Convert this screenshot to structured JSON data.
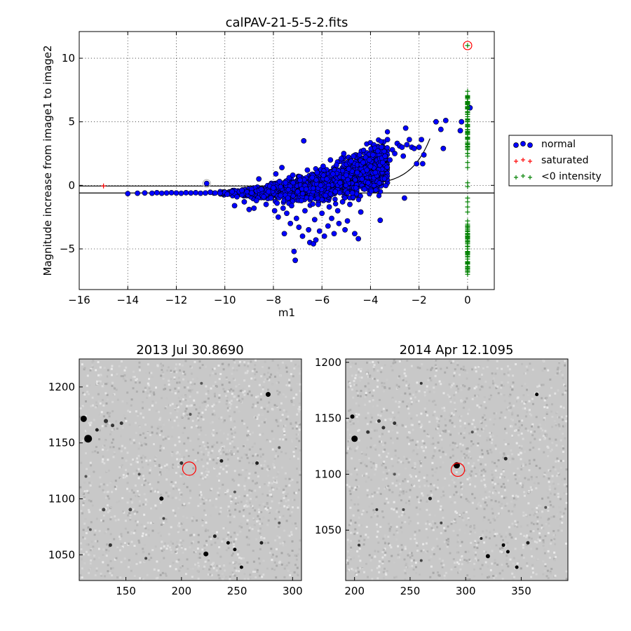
{
  "chart_data": [
    {
      "type": "scatter",
      "title": "calPAV-21-5-5-2.fits",
      "xlabel": "m1",
      "ylabel": "Magnitude increase from image1 to image2",
      "xlim": [
        -16,
        1.1
      ],
      "ylim": [
        -8.2,
        12.1
      ],
      "xticks": [
        -16,
        -14,
        -12,
        -10,
        -8,
        -6,
        -4,
        -2,
        0
      ],
      "yticks": [
        -5,
        0,
        5,
        10
      ],
      "xtick_labels": [
        "−16",
        "−14",
        "−12",
        "−10",
        "−8",
        "−6",
        "−4",
        "−2",
        "0"
      ],
      "ytick_labels": [
        "−5",
        "0",
        "5",
        "10"
      ],
      "grid": true,
      "legend_position": "right-outside",
      "colors": {
        "normal": "#0000ff",
        "saturated": "#ff0000",
        "negative": "#008000",
        "highlight": "#ff0000"
      },
      "series": [
        {
          "name": "normal",
          "marker": "circle",
          "points": [
            [
              -14.0,
              -0.65
            ],
            [
              -13.6,
              -0.62
            ],
            [
              -13.3,
              -0.6
            ],
            [
              -13.0,
              -0.62
            ],
            [
              -12.8,
              -0.58
            ],
            [
              -12.6,
              -0.62
            ],
            [
              -12.4,
              -0.6
            ],
            [
              -12.2,
              -0.58
            ],
            [
              -12.0,
              -0.6
            ],
            [
              -11.8,
              -0.62
            ],
            [
              -11.6,
              -0.58
            ],
            [
              -11.4,
              -0.6
            ],
            [
              -11.2,
              -0.58
            ],
            [
              -11.0,
              -0.62
            ],
            [
              -10.8,
              -0.6
            ],
            [
              -10.75,
              0.15
            ],
            [
              -10.6,
              -0.55
            ],
            [
              -10.4,
              -0.6
            ],
            [
              -10.2,
              -0.62
            ],
            [
              -10.0,
              -0.55
            ],
            [
              -9.9,
              -0.7
            ],
            [
              -9.7,
              -0.5
            ],
            [
              -9.6,
              -1.6
            ],
            [
              -9.5,
              -0.9
            ],
            [
              -9.3,
              -0.4
            ],
            [
              -9.2,
              -1.3
            ],
            [
              -9.0,
              -1.9
            ],
            [
              -8.9,
              -0.6
            ],
            [
              -8.8,
              -1.8
            ],
            [
              -8.7,
              -1.2
            ],
            [
              -8.6,
              0.5
            ],
            [
              -8.5,
              -0.3
            ],
            [
              -8.4,
              -0.9
            ],
            [
              -8.3,
              -1.5
            ],
            [
              -8.2,
              -0.5
            ],
            [
              -8.1,
              -1.0
            ],
            [
              -8.0,
              -0.2
            ],
            [
              -7.95,
              -2.0
            ],
            [
              -7.9,
              0.9
            ],
            [
              -7.85,
              -1.4
            ],
            [
              -7.8,
              -2.5
            ],
            [
              -7.75,
              0.3
            ],
            [
              -7.7,
              -0.8
            ],
            [
              -7.65,
              1.4
            ],
            [
              -7.6,
              -1.8
            ],
            [
              -7.55,
              -3.8
            ],
            [
              -7.5,
              0.2
            ],
            [
              -7.45,
              -2.2
            ],
            [
              -7.4,
              -1.0
            ],
            [
              -7.35,
              0.6
            ],
            [
              -7.3,
              -3.0
            ],
            [
              -7.25,
              -1.6
            ],
            [
              -7.2,
              0.8
            ],
            [
              -7.15,
              -5.2
            ],
            [
              -7.1,
              -5.9
            ],
            [
              -7.05,
              -2.6
            ],
            [
              -7.0,
              -0.5
            ],
            [
              -6.95,
              -3.3
            ],
            [
              -6.9,
              0.4
            ],
            [
              -6.85,
              -1.2
            ],
            [
              -6.8,
              -4.0
            ],
            [
              -6.75,
              3.5
            ],
            [
              -6.7,
              -2.0
            ],
            [
              -6.65,
              -0.3
            ],
            [
              -6.6,
              1.2
            ],
            [
              -6.55,
              -3.5
            ],
            [
              -6.5,
              -4.5
            ],
            [
              -6.45,
              -1.0
            ],
            [
              -6.4,
              0.6
            ],
            [
              -6.35,
              -4.6
            ],
            [
              -6.3,
              -2.7
            ],
            [
              -6.25,
              -4.3
            ],
            [
              -6.2,
              1.0
            ],
            [
              -6.15,
              -1.5
            ],
            [
              -6.1,
              -3.6
            ],
            [
              -6.05,
              0.0
            ],
            [
              -6.0,
              -2.2
            ],
            [
              -5.95,
              1.5
            ],
            [
              -5.9,
              -4.0
            ],
            [
              -5.85,
              -0.8
            ],
            [
              -5.8,
              0.5
            ],
            [
              -5.75,
              -3.2
            ],
            [
              -5.7,
              -1.7
            ],
            [
              -5.65,
              2.0
            ],
            [
              -5.6,
              -2.6
            ],
            [
              -5.55,
              0.9
            ],
            [
              -5.5,
              -3.8
            ],
            [
              -5.45,
              -0.5
            ],
            [
              -5.4,
              1.6
            ],
            [
              -5.35,
              -2.0
            ],
            [
              -5.3,
              -3.0
            ],
            [
              -5.25,
              0.2
            ],
            [
              -5.2,
              2.1
            ],
            [
              -5.15,
              -1.3
            ],
            [
              -5.1,
              2.5
            ],
            [
              -5.05,
              -3.5
            ],
            [
              -5.0,
              0.8
            ],
            [
              -4.95,
              -2.8
            ],
            [
              -4.9,
              1.3
            ],
            [
              -4.85,
              -1.5
            ],
            [
              -4.8,
              1.9
            ],
            [
              -4.75,
              -0.6
            ],
            [
              -4.7,
              2.3
            ],
            [
              -4.65,
              -3.8
            ],
            [
              -4.6,
              -0.2
            ],
            [
              -4.55,
              1.0
            ],
            [
              -4.5,
              -4.2
            ],
            [
              -4.45,
              2.4
            ],
            [
              -4.4,
              -2.1
            ],
            [
              -4.35,
              0.5
            ],
            [
              -4.3,
              1.8
            ],
            [
              -4.25,
              -0.3
            ],
            [
              -4.2,
              2.2
            ],
            [
              -4.15,
              1.2
            ],
            [
              -4.1,
              0.2
            ],
            [
              -4.05,
              2.0
            ],
            [
              -4.0,
              1.5
            ],
            [
              -3.9,
              2.4
            ],
            [
              -3.8,
              1.0
            ],
            [
              -3.7,
              2.7
            ],
            [
              -3.6,
              -2.75
            ],
            [
              -3.55,
              3.0
            ],
            [
              -3.5,
              1.8
            ],
            [
              -3.4,
              2.3
            ],
            [
              -3.3,
              3.6
            ],
            [
              -3.2,
              2.0
            ],
            [
              -3.1,
              2.8
            ],
            [
              -3.0,
              2.5
            ],
            [
              -2.9,
              3.3
            ],
            [
              -2.8,
              3.1
            ],
            [
              -2.7,
              3.0
            ],
            [
              -2.65,
              2.3
            ],
            [
              -2.6,
              -1.0
            ],
            [
              -2.55,
              4.5
            ],
            [
              -2.5,
              3.2
            ],
            [
              -2.4,
              3.6
            ],
            [
              -2.3,
              3.0
            ],
            [
              -2.2,
              2.9
            ],
            [
              -2.1,
              1.7
            ],
            [
              -2.0,
              3.0
            ],
            [
              -1.9,
              3.6
            ],
            [
              -1.85,
              1.7
            ],
            [
              -1.8,
              2.4
            ],
            [
              -1.3,
              5.0
            ],
            [
              -1.1,
              4.4
            ],
            [
              -0.9,
              5.1
            ],
            [
              -1.0,
              2.9
            ],
            [
              -0.3,
              4.3
            ],
            [
              -0.25,
              5.0
            ],
            [
              0.1,
              6.1
            ]
          ]
        },
        {
          "name": "saturated",
          "marker": "plus",
          "points": [
            [
              -15.0,
              -0.05
            ]
          ]
        },
        {
          "name": "<0 intensity",
          "marker": "plus",
          "points": [
            [
              0,
              11.0
            ],
            [
              0,
              7.4
            ],
            [
              0,
              7.0
            ],
            [
              0,
              6.8
            ],
            [
              0,
              6.6
            ],
            [
              0,
              6.4
            ],
            [
              0,
              6.2
            ],
            [
              0,
              6.0
            ],
            [
              0,
              5.8
            ],
            [
              0,
              5.6
            ],
            [
              0,
              5.4
            ],
            [
              0,
              5.2
            ],
            [
              0,
              5.0
            ],
            [
              0,
              4.8
            ],
            [
              0,
              4.6
            ],
            [
              0,
              4.4
            ],
            [
              0,
              4.2
            ],
            [
              0,
              4.0
            ],
            [
              0,
              3.8
            ],
            [
              0,
              3.6
            ],
            [
              0,
              3.4
            ],
            [
              0,
              3.2
            ],
            [
              0,
              3.0
            ],
            [
              0,
              2.8
            ],
            [
              0,
              2.5
            ],
            [
              0,
              2.3
            ],
            [
              0,
              1.8
            ],
            [
              0,
              1.4
            ],
            [
              0,
              0.2
            ],
            [
              0,
              -0.1
            ],
            [
              0,
              -1.0
            ],
            [
              0,
              -1.3
            ],
            [
              0,
              -1.7
            ],
            [
              0,
              -2.1
            ],
            [
              0,
              -2.8
            ],
            [
              0,
              -3.2
            ],
            [
              0,
              -3.4
            ],
            [
              0,
              -3.6
            ],
            [
              0,
              -3.8
            ],
            [
              0,
              -4.0
            ],
            [
              0,
              -4.2
            ],
            [
              0,
              -4.4
            ],
            [
              0,
              -4.6
            ],
            [
              0,
              -4.8
            ],
            [
              0,
              -5.0
            ],
            [
              0,
              -5.2
            ],
            [
              0,
              -5.4
            ],
            [
              0,
              -5.6
            ],
            [
              0,
              -5.8
            ],
            [
              0,
              -6.0
            ],
            [
              0,
              -6.2
            ],
            [
              0,
              -6.4
            ],
            [
              0,
              -6.6
            ],
            [
              0,
              -6.8
            ],
            [
              0,
              -7.0
            ]
          ]
        }
      ],
      "highlight_point": [
        0,
        11.0
      ],
      "hline_y": -0.6
    },
    {
      "type": "image",
      "title": "2013 Jul 30.8690",
      "xlim": [
        108,
        308
      ],
      "ylim": [
        1027,
        1225
      ],
      "xticks": [
        150,
        200,
        250,
        300
      ],
      "yticks": [
        1050,
        1100,
        1150,
        1200
      ],
      "circle_center": [
        207,
        1127
      ]
    },
    {
      "type": "image",
      "title": "2014 Apr 12.1095",
      "xlim": [
        192,
        392
      ],
      "ylim": [
        1005,
        1203
      ],
      "xticks": [
        200,
        250,
        300,
        350
      ],
      "yticks": [
        1050,
        1100,
        1150,
        1200
      ],
      "circle_center": [
        293,
        1104
      ]
    }
  ]
}
